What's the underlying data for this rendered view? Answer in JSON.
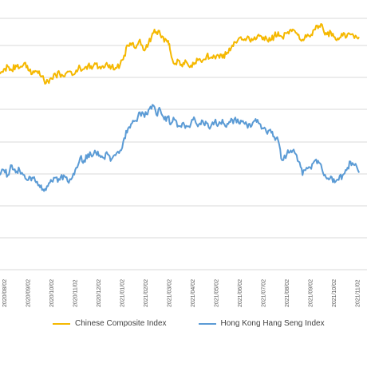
{
  "chart_data": {
    "type": "line",
    "title": "",
    "xlabel": "",
    "ylabel": "",
    "grid": "horizontal",
    "legend_position": "bottom",
    "x_ticks": [
      "2020/08/02",
      "2020/09/02",
      "2020/10/02",
      "2020/11/02",
      "2020/12/02",
      "2021/01/02",
      "2021/02/02",
      "2021/03/02",
      "2021/04/02",
      "2021/05/02",
      "2021/06/02",
      "2021/07/02",
      "2021/08/02",
      "2021/09/02",
      "2021/10/02",
      "2021/11/02"
    ],
    "series": [
      {
        "name": "Chinese Composite Index",
        "color": "#F5B800",
        "anchors": [
          [
            "2020/07/31",
            3300
          ],
          [
            "2020/08/05",
            3340
          ],
          [
            "2020/08/10",
            3360
          ],
          [
            "2020/08/15",
            3330
          ],
          [
            "2020/08/20",
            3370
          ],
          [
            "2020/08/25",
            3350
          ],
          [
            "2020/08/31",
            3390
          ],
          [
            "2020/09/05",
            3330
          ],
          [
            "2020/09/10",
            3300
          ],
          [
            "2020/09/15",
            3320
          ],
          [
            "2020/09/20",
            3290
          ],
          [
            "2020/09/25",
            3250
          ],
          [
            "2020/09/30",
            3240
          ],
          [
            "2020/10/05",
            3260
          ],
          [
            "2020/10/10",
            3290
          ],
          [
            "2020/10/15",
            3300
          ],
          [
            "2020/10/20",
            3280
          ],
          [
            "2020/10/25",
            3320
          ],
          [
            "2020/10/31",
            3290
          ],
          [
            "2020/11/05",
            3330
          ],
          [
            "2020/11/10",
            3350
          ],
          [
            "2020/11/15",
            3340
          ],
          [
            "2020/11/20",
            3370
          ],
          [
            "2020/11/25",
            3340
          ],
          [
            "2020/11/30",
            3380
          ],
          [
            "2020/12/05",
            3360
          ],
          [
            "2020/12/10",
            3350
          ],
          [
            "2020/12/15",
            3370
          ],
          [
            "2020/12/20",
            3360
          ],
          [
            "2020/12/25",
            3350
          ],
          [
            "2020/12/31",
            3380
          ],
          [
            "2021/01/05",
            3450
          ],
          [
            "2021/01/10",
            3530
          ],
          [
            "2021/01/15",
            3550
          ],
          [
            "2021/01/20",
            3510
          ],
          [
            "2021/01/25",
            3580
          ],
          [
            "2021/01/31",
            3490
          ],
          [
            "2021/02/05",
            3550
          ],
          [
            "2021/02/10",
            3630
          ],
          [
            "2021/02/15",
            3640
          ],
          [
            "2021/02/20",
            3620
          ],
          [
            "2021/02/25",
            3560
          ],
          [
            "2021/03/02",
            3570
          ],
          [
            "2021/03/05",
            3480
          ],
          [
            "2021/03/10",
            3380
          ],
          [
            "2021/03/15",
            3410
          ],
          [
            "2021/03/20",
            3360
          ],
          [
            "2021/03/25",
            3400
          ],
          [
            "2021/03/31",
            3370
          ],
          [
            "2021/04/05",
            3390
          ],
          [
            "2021/04/10",
            3420
          ],
          [
            "2021/04/15",
            3410
          ],
          [
            "2021/04/20",
            3450
          ],
          [
            "2021/04/25",
            3430
          ],
          [
            "2021/04/30",
            3440
          ],
          [
            "2021/05/05",
            3450
          ],
          [
            "2021/05/10",
            3430
          ],
          [
            "2021/05/15",
            3460
          ],
          [
            "2021/05/20",
            3490
          ],
          [
            "2021/05/25",
            3560
          ],
          [
            "2021/05/31",
            3590
          ],
          [
            "2021/06/05",
            3580
          ],
          [
            "2021/06/10",
            3590
          ],
          [
            "2021/06/15",
            3560
          ],
          [
            "2021/06/20",
            3600
          ],
          [
            "2021/06/25",
            3620
          ],
          [
            "2021/06/30",
            3580
          ],
          [
            "2021/07/05",
            3590
          ],
          [
            "2021/07/10",
            3570
          ],
          [
            "2021/07/15",
            3610
          ],
          [
            "2021/07/20",
            3640
          ],
          [
            "2021/07/25",
            3600
          ],
          [
            "2021/07/31",
            3630
          ],
          [
            "2021/08/05",
            3660
          ],
          [
            "2021/08/10",
            3650
          ],
          [
            "2021/08/15",
            3620
          ],
          [
            "2021/08/20",
            3580
          ],
          [
            "2021/08/25",
            3600
          ],
          [
            "2021/08/31",
            3620
          ],
          [
            "2021/09/05",
            3660
          ],
          [
            "2021/09/10",
            3690
          ],
          [
            "2021/09/15",
            3670
          ],
          [
            "2021/09/20",
            3620
          ],
          [
            "2021/09/25",
            3640
          ],
          [
            "2021/09/30",
            3600
          ],
          [
            "2021/10/05",
            3580
          ],
          [
            "2021/10/10",
            3610
          ],
          [
            "2021/10/15",
            3600
          ],
          [
            "2021/10/20",
            3620
          ],
          [
            "2021/10/25",
            3590
          ],
          [
            "2021/10/31",
            3600
          ]
        ]
      },
      {
        "name": "Hong Kong Hang Seng Index",
        "color": "#5B9BD5",
        "anchors": [
          [
            "2020/07/31",
            2480
          ],
          [
            "2020/08/05",
            2520
          ],
          [
            "2020/08/10",
            2480
          ],
          [
            "2020/08/15",
            2560
          ],
          [
            "2020/08/20",
            2500
          ],
          [
            "2020/08/25",
            2520
          ],
          [
            "2020/08/31",
            2480
          ],
          [
            "2020/09/05",
            2440
          ],
          [
            "2020/09/10",
            2460
          ],
          [
            "2020/09/15",
            2420
          ],
          [
            "2020/09/20",
            2380
          ],
          [
            "2020/09/25",
            2350
          ],
          [
            "2020/09/30",
            2390
          ],
          [
            "2020/10/05",
            2430
          ],
          [
            "2020/10/10",
            2460
          ],
          [
            "2020/10/15",
            2440
          ],
          [
            "2020/10/20",
            2480
          ],
          [
            "2020/10/25",
            2430
          ],
          [
            "2020/10/31",
            2460
          ],
          [
            "2020/11/05",
            2540
          ],
          [
            "2020/11/10",
            2620
          ],
          [
            "2020/11/15",
            2600
          ],
          [
            "2020/11/20",
            2650
          ],
          [
            "2020/11/25",
            2630
          ],
          [
            "2020/11/30",
            2660
          ],
          [
            "2020/12/05",
            2640
          ],
          [
            "2020/12/10",
            2620
          ],
          [
            "2020/12/15",
            2650
          ],
          [
            "2020/12/20",
            2610
          ],
          [
            "2020/12/25",
            2640
          ],
          [
            "2020/12/31",
            2680
          ],
          [
            "2021/01/05",
            2780
          ],
          [
            "2021/01/10",
            2860
          ],
          [
            "2021/01/15",
            2900
          ],
          [
            "2021/01/20",
            2920
          ],
          [
            "2021/01/25",
            2990
          ],
          [
            "2021/01/31",
            2950
          ],
          [
            "2021/02/05",
            3010
          ],
          [
            "2021/02/10",
            3050
          ],
          [
            "2021/02/15",
            2970
          ],
          [
            "2021/02/20",
            3010
          ],
          [
            "2021/02/25",
            2930
          ],
          [
            "2021/03/02",
            2950
          ],
          [
            "2021/03/05",
            2890
          ],
          [
            "2021/03/10",
            2930
          ],
          [
            "2021/03/15",
            2880
          ],
          [
            "2021/03/20",
            2900
          ],
          [
            "2021/03/25",
            2880
          ],
          [
            "2021/03/31",
            2900
          ],
          [
            "2021/04/05",
            2930
          ],
          [
            "2021/04/10",
            2890
          ],
          [
            "2021/04/15",
            2920
          ],
          [
            "2021/04/20",
            2900
          ],
          [
            "2021/04/25",
            2870
          ],
          [
            "2021/04/30",
            2910
          ],
          [
            "2021/05/05",
            2890
          ],
          [
            "2021/05/10",
            2930
          ],
          [
            "2021/05/15",
            2870
          ],
          [
            "2021/05/20",
            2910
          ],
          [
            "2021/05/25",
            2930
          ],
          [
            "2021/05/31",
            2900
          ],
          [
            "2021/06/05",
            2920
          ],
          [
            "2021/06/10",
            2890
          ],
          [
            "2021/06/15",
            2870
          ],
          [
            "2021/06/20",
            2920
          ],
          [
            "2021/06/25",
            2900
          ],
          [
            "2021/06/30",
            2860
          ],
          [
            "2021/07/05",
            2830
          ],
          [
            "2021/07/10",
            2850
          ],
          [
            "2021/07/15",
            2790
          ],
          [
            "2021/07/20",
            2760
          ],
          [
            "2021/07/25",
            2600
          ],
          [
            "2021/07/31",
            2650
          ],
          [
            "2021/08/05",
            2680
          ],
          [
            "2021/08/10",
            2660
          ],
          [
            "2021/08/15",
            2590
          ],
          [
            "2021/08/20",
            2480
          ],
          [
            "2021/08/25",
            2540
          ],
          [
            "2021/08/31",
            2530
          ],
          [
            "2021/09/05",
            2600
          ],
          [
            "2021/09/10",
            2580
          ],
          [
            "2021/09/15",
            2500
          ],
          [
            "2021/09/20",
            2450
          ],
          [
            "2021/09/25",
            2470
          ],
          [
            "2021/09/30",
            2420
          ],
          [
            "2021/10/05",
            2440
          ],
          [
            "2021/10/10",
            2480
          ],
          [
            "2021/10/15",
            2520
          ],
          [
            "2021/10/20",
            2590
          ],
          [
            "2021/10/25",
            2560
          ],
          [
            "2021/10/31",
            2500
          ]
        ]
      }
    ]
  }
}
